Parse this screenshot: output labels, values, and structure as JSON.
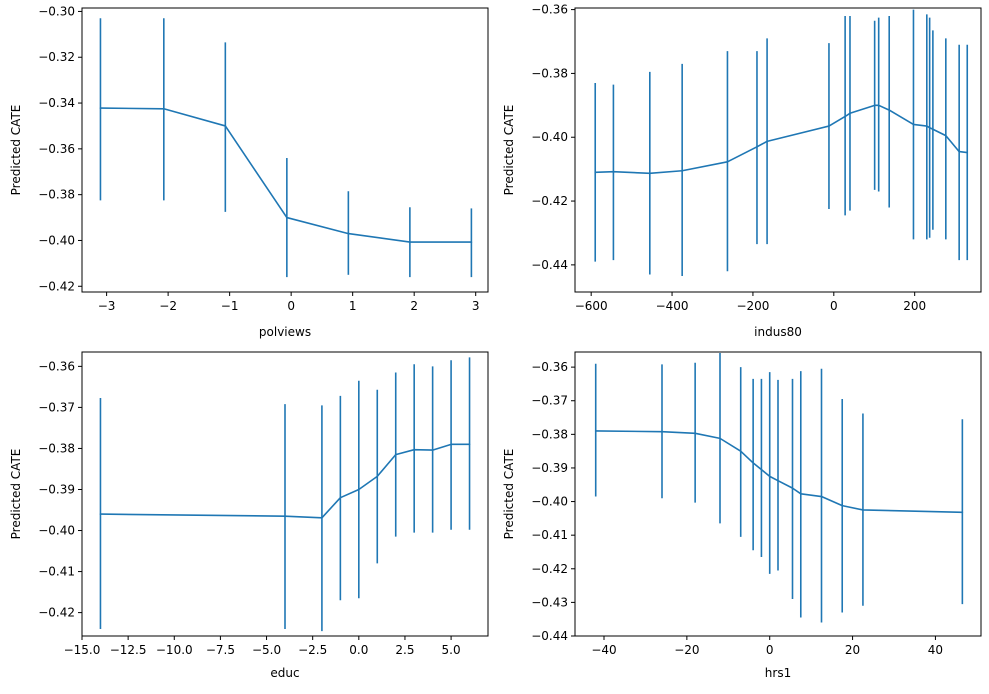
{
  "colors": {
    "line": "#1f77b4",
    "axis": "#000000",
    "background": "#ffffff"
  },
  "chart_data": [
    {
      "type": "line",
      "xlabel": "polviews",
      "ylabel": "Predicted CATE",
      "grid": false,
      "xlim": [
        -3.4,
        3.2
      ],
      "ylim": [
        -0.4225,
        -0.2985
      ],
      "xticks": [
        -3,
        -2,
        -1,
        0,
        1,
        2,
        3
      ],
      "xtick_labels": [
        "−3",
        "−2",
        "−1",
        "0",
        "1",
        "2",
        "3"
      ],
      "yticks": [
        -0.42,
        -0.4,
        -0.38,
        -0.36,
        -0.34,
        -0.32,
        -0.3
      ],
      "ytick_labels": [
        "−0.42",
        "−0.40",
        "−0.38",
        "−0.36",
        "−0.34",
        "−0.32",
        "−0.30"
      ],
      "x": [
        -3.1,
        -2.07,
        -1.07,
        -0.07,
        0.93,
        1.93,
        2.93
      ],
      "y": [
        -0.3422,
        -0.3425,
        -0.35,
        -0.39,
        -0.397,
        -0.4007,
        -0.4007
      ],
      "err_low": [
        -0.3825,
        -0.3825,
        -0.3875,
        -0.416,
        -0.415,
        -0.416,
        -0.416
      ],
      "err_high": [
        -0.303,
        -0.303,
        -0.3135,
        -0.364,
        -0.3785,
        -0.3855,
        -0.386
      ]
    },
    {
      "type": "line",
      "xlabel": "indus80",
      "ylabel": "Predicted CATE",
      "grid": false,
      "xlim": [
        -640,
        364
      ],
      "ylim": [
        -0.4485,
        -0.3595
      ],
      "xticks": [
        -600,
        -400,
        -200,
        0,
        200
      ],
      "xtick_labels": [
        "−600",
        "−400",
        "−200",
        "0",
        "200"
      ],
      "yticks": [
        -0.44,
        -0.42,
        -0.4,
        -0.38,
        -0.36
      ],
      "ytick_labels": [
        "−0.44",
        "−0.42",
        "−0.40",
        "−0.38",
        "−0.36"
      ],
      "x": [
        -590,
        -545,
        -455,
        -375,
        -263,
        -190,
        -165,
        -12,
        28,
        40,
        101,
        111,
        137,
        197,
        230,
        237,
        245,
        277,
        310,
        330
      ],
      "y": [
        -0.411,
        -0.4108,
        -0.4113,
        -0.4105,
        -0.4077,
        -0.403,
        -0.4013,
        -0.3965,
        -0.3935,
        -0.3925,
        -0.39,
        -0.39,
        -0.3915,
        -0.396,
        -0.3965,
        -0.397,
        -0.3975,
        -0.3995,
        -0.4045,
        -0.4048
      ],
      "err_low": [
        -0.439,
        -0.4385,
        -0.443,
        -0.4435,
        -0.442,
        -0.4335,
        -0.4335,
        -0.4225,
        -0.4245,
        -0.423,
        -0.4165,
        -0.417,
        -0.422,
        -0.432,
        -0.432,
        -0.4315,
        -0.429,
        -0.432,
        -0.4385,
        -0.4385
      ],
      "err_high": [
        -0.383,
        -0.3835,
        -0.3795,
        -0.377,
        -0.373,
        -0.373,
        -0.369,
        -0.3705,
        -0.362,
        -0.362,
        -0.3635,
        -0.3625,
        -0.362,
        -0.36,
        -0.3615,
        -0.3625,
        -0.3665,
        -0.369,
        -0.371,
        -0.371
      ]
    },
    {
      "type": "line",
      "xlabel": "educ",
      "ylabel": "Predicted CATE",
      "grid": false,
      "xlim": [
        -15.0,
        7.0
      ],
      "ylim": [
        -0.4257,
        -0.3565
      ],
      "xticks": [
        -15,
        -12.5,
        -10,
        -7.5,
        -5,
        -2.5,
        0,
        2.5,
        5
      ],
      "xtick_labels": [
        "−15.0",
        "−12.5",
        "−10.0",
        "−7.5",
        "−5.0",
        "−2.5",
        "0.0",
        "2.5",
        "5.0"
      ],
      "yticks": [
        -0.42,
        -0.41,
        -0.4,
        -0.39,
        -0.38,
        -0.37,
        -0.36
      ],
      "ytick_labels": [
        "−0.42",
        "−0.41",
        "−0.40",
        "−0.39",
        "−0.38",
        "−0.37",
        "−0.36"
      ],
      "x": [
        -14,
        -4,
        -2,
        -1,
        0,
        1,
        2,
        3,
        4,
        5,
        6
      ],
      "y": [
        -0.396,
        -0.3965,
        -0.3969,
        -0.392,
        -0.39,
        -0.3868,
        -0.3815,
        -0.3803,
        -0.3804,
        -0.379,
        -0.379
      ],
      "err_low": [
        -0.424,
        -0.424,
        -0.4245,
        -0.417,
        -0.4165,
        -0.408,
        -0.4015,
        -0.4005,
        -0.4005,
        -0.3998,
        -0.3998
      ],
      "err_high": [
        -0.3677,
        -0.3692,
        -0.3695,
        -0.3672,
        -0.3635,
        -0.3657,
        -0.3615,
        -0.3595,
        -0.36,
        -0.3585,
        -0.3578
      ]
    },
    {
      "type": "line",
      "xlabel": "hrs1",
      "ylabel": "Predicted CATE",
      "grid": false,
      "xlim": [
        -47,
        51
      ],
      "ylim": [
        -0.44,
        -0.3555
      ],
      "xticks": [
        -40,
        -20,
        0,
        20,
        40
      ],
      "xtick_labels": [
        "−40",
        "−20",
        "0",
        "20",
        "40"
      ],
      "yticks": [
        -0.44,
        -0.43,
        -0.42,
        -0.41,
        -0.4,
        -0.39,
        -0.38,
        -0.37,
        -0.36
      ],
      "ytick_labels": [
        "−0.44",
        "−0.43",
        "−0.42",
        "−0.41",
        "−0.40",
        "−0.39",
        "−0.38",
        "−0.37",
        "−0.36"
      ],
      "x": [
        -42,
        -26,
        -18,
        -12,
        -7,
        -4,
        -2,
        0,
        2,
        5.5,
        7.5,
        12.5,
        17.5,
        22.5,
        46.5
      ],
      "y": [
        -0.379,
        -0.3792,
        -0.3797,
        -0.3812,
        -0.385,
        -0.3885,
        -0.3905,
        -0.3925,
        -0.3938,
        -0.396,
        -0.3977,
        -0.3985,
        -0.4012,
        -0.4025,
        -0.4032
      ],
      "err_low": [
        -0.3985,
        -0.399,
        -0.4003,
        -0.4065,
        -0.4105,
        -0.4145,
        -0.4165,
        -0.4215,
        -0.4205,
        -0.429,
        -0.4345,
        -0.436,
        -0.433,
        -0.431,
        -0.4305
      ],
      "err_high": [
        -0.359,
        -0.3592,
        -0.3587,
        -0.3558,
        -0.36,
        -0.3635,
        -0.3635,
        -0.3615,
        -0.3638,
        -0.3635,
        -0.3612,
        -0.3605,
        -0.3695,
        -0.3738,
        -0.3755
      ]
    }
  ]
}
